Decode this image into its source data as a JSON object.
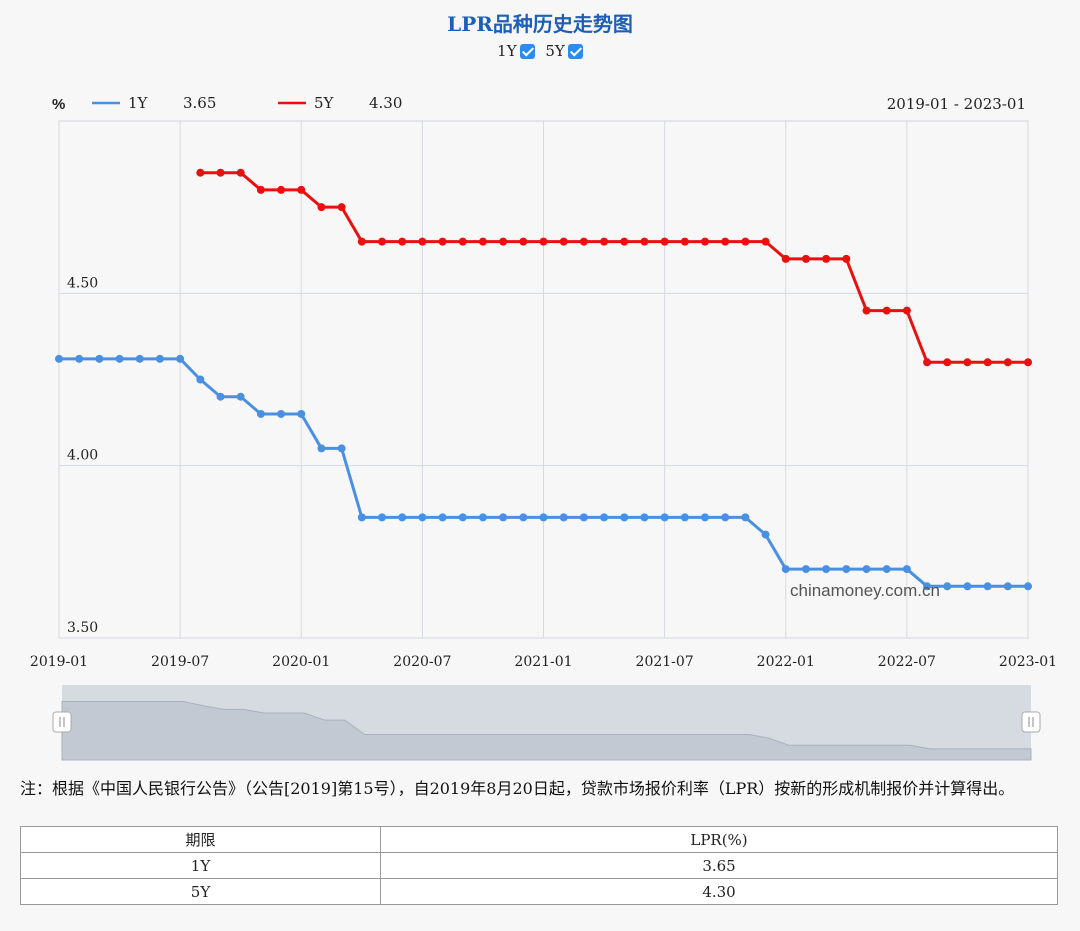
{
  "header": {
    "title": "LPR品种历史走势图",
    "toggles": [
      {
        "label": "1Y",
        "checked": true
      },
      {
        "label": "5Y",
        "checked": true
      }
    ]
  },
  "chart_data": {
    "type": "line",
    "unit_label": "%",
    "date_range_label": "2019-01 - 2023-01",
    "watermark": "chinamoney.com.cn",
    "x": [
      "2019-01",
      "2019-02",
      "2019-03",
      "2019-04",
      "2019-05",
      "2019-06",
      "2019-07",
      "2019-08",
      "2019-09",
      "2019-10",
      "2019-11",
      "2019-12",
      "2020-01",
      "2020-02",
      "2020-03",
      "2020-04",
      "2020-05",
      "2020-06",
      "2020-07",
      "2020-08",
      "2020-09",
      "2020-10",
      "2020-11",
      "2020-12",
      "2021-01",
      "2021-02",
      "2021-03",
      "2021-04",
      "2021-05",
      "2021-06",
      "2021-07",
      "2021-08",
      "2021-09",
      "2021-10",
      "2021-11",
      "2021-12",
      "2022-01",
      "2022-02",
      "2022-03",
      "2022-04",
      "2022-05",
      "2022-06",
      "2022-07",
      "2022-08",
      "2022-09",
      "2022-10",
      "2022-11",
      "2022-12",
      "2023-01"
    ],
    "x_ticks": [
      "2019-01",
      "2019-07",
      "2020-01",
      "2020-07",
      "2021-01",
      "2021-07",
      "2022-01",
      "2022-07",
      "2023-01"
    ],
    "y_ticks": [
      "3.50",
      "4.00",
      "4.50"
    ],
    "ylim": [
      3.5,
      5.0
    ],
    "grid": true,
    "legend_position": "top-left",
    "series": [
      {
        "name": "1Y",
        "latest": "3.65",
        "color": "#4a90e2",
        "values": [
          4.31,
          4.31,
          4.31,
          4.31,
          4.31,
          4.31,
          4.31,
          4.25,
          4.2,
          4.2,
          4.15,
          4.15,
          4.15,
          4.05,
          4.05,
          3.85,
          3.85,
          3.85,
          3.85,
          3.85,
          3.85,
          3.85,
          3.85,
          3.85,
          3.85,
          3.85,
          3.85,
          3.85,
          3.85,
          3.85,
          3.85,
          3.85,
          3.85,
          3.85,
          3.85,
          3.8,
          3.7,
          3.7,
          3.7,
          3.7,
          3.7,
          3.7,
          3.7,
          3.65,
          3.65,
          3.65,
          3.65,
          3.65,
          3.65
        ]
      },
      {
        "name": "5Y",
        "latest": "4.30",
        "color": "#e8110f",
        "values": [
          null,
          null,
          null,
          null,
          null,
          null,
          null,
          4.85,
          4.85,
          4.85,
          4.8,
          4.8,
          4.8,
          4.75,
          4.75,
          4.65,
          4.65,
          4.65,
          4.65,
          4.65,
          4.65,
          4.65,
          4.65,
          4.65,
          4.65,
          4.65,
          4.65,
          4.65,
          4.65,
          4.65,
          4.65,
          4.65,
          4.65,
          4.65,
          4.65,
          4.65,
          4.6,
          4.6,
          4.6,
          4.6,
          4.45,
          4.45,
          4.45,
          4.3,
          4.3,
          4.3,
          4.3,
          4.3,
          4.3
        ]
      }
    ]
  },
  "note": "注：根据《中国人民银行公告》（公告[2019]第15号），自2019年8月20日起，贷款市场报价利率（LPR）按新的形成机制报价并计算得出。",
  "table": {
    "headers": [
      "期限",
      "LPR(%)"
    ],
    "rows": [
      [
        "1Y",
        "3.65"
      ],
      [
        "5Y",
        "4.30"
      ]
    ]
  }
}
